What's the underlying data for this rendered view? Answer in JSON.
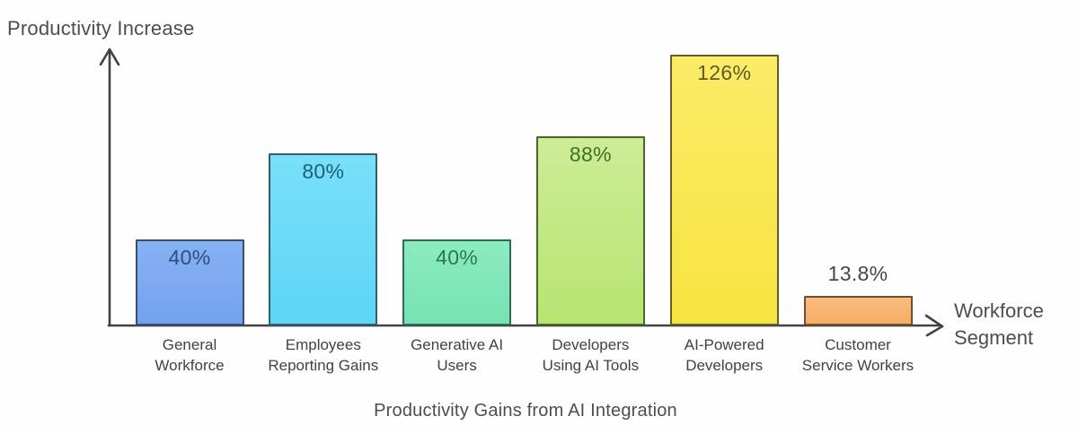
{
  "chart_data": {
    "type": "bar",
    "title": "Productivity Gains from AI Integration",
    "xlabel": "Workforce Segment",
    "ylabel": "Productivity Increase",
    "value_suffix": "%",
    "ylim": [
      0,
      130
    ],
    "grid": false,
    "legend": "none",
    "categories": [
      "General Workforce",
      "Employees Reporting Gains",
      "Generative AI Users",
      "Developers Using AI Tools",
      "AI-Powered Developers",
      "Customer Service Workers"
    ],
    "values": [
      40,
      80,
      40,
      88,
      126,
      13.8
    ],
    "axis_color": "#3f4347",
    "bars": [
      {
        "category_lines": [
          "General",
          "Workforce"
        ],
        "value": 40,
        "display": "40%",
        "fill_top": "#86b1f4",
        "fill_bottom": "#73a1ed",
        "border": "#3a4e70",
        "label_color": "#2f4f7e",
        "label_position": "inside"
      },
      {
        "category_lines": [
          "Employees",
          "Reporting Gains"
        ],
        "value": 80,
        "display": "80%",
        "fill_top": "#79dff9",
        "fill_bottom": "#5cd5f6",
        "border": "#2e5f6e",
        "label_color": "#1c6078",
        "label_position": "inside"
      },
      {
        "category_lines": [
          "Generative AI",
          "Users"
        ],
        "value": 40,
        "display": "40%",
        "fill_top": "#8ceac1",
        "fill_bottom": "#75e3b1",
        "border": "#2e6b50",
        "label_color": "#2a7a51",
        "label_position": "inside"
      },
      {
        "category_lines": [
          "Developers",
          "Using AI Tools"
        ],
        "value": 88,
        "display": "88%",
        "fill_top": "#ccec96",
        "fill_bottom": "#b7e571",
        "border": "#49662b",
        "label_color": "#416f26",
        "label_position": "inside"
      },
      {
        "category_lines": [
          "AI-Powered",
          "Developers"
        ],
        "value": 126,
        "display": "126%",
        "fill_top": "#fbeb67",
        "fill_bottom": "#f8e440",
        "border": "#635d2a",
        "label_color": "#615b24",
        "label_position": "inside"
      },
      {
        "category_lines": [
          "Customer",
          "Service Workers"
        ],
        "value": 13.8,
        "display": "13.8%",
        "fill_top": "#f9bc7f",
        "fill_bottom": "#f6ae64",
        "border": "#6e4f2e",
        "label_color": "#43464a",
        "label_position": "above"
      }
    ]
  }
}
